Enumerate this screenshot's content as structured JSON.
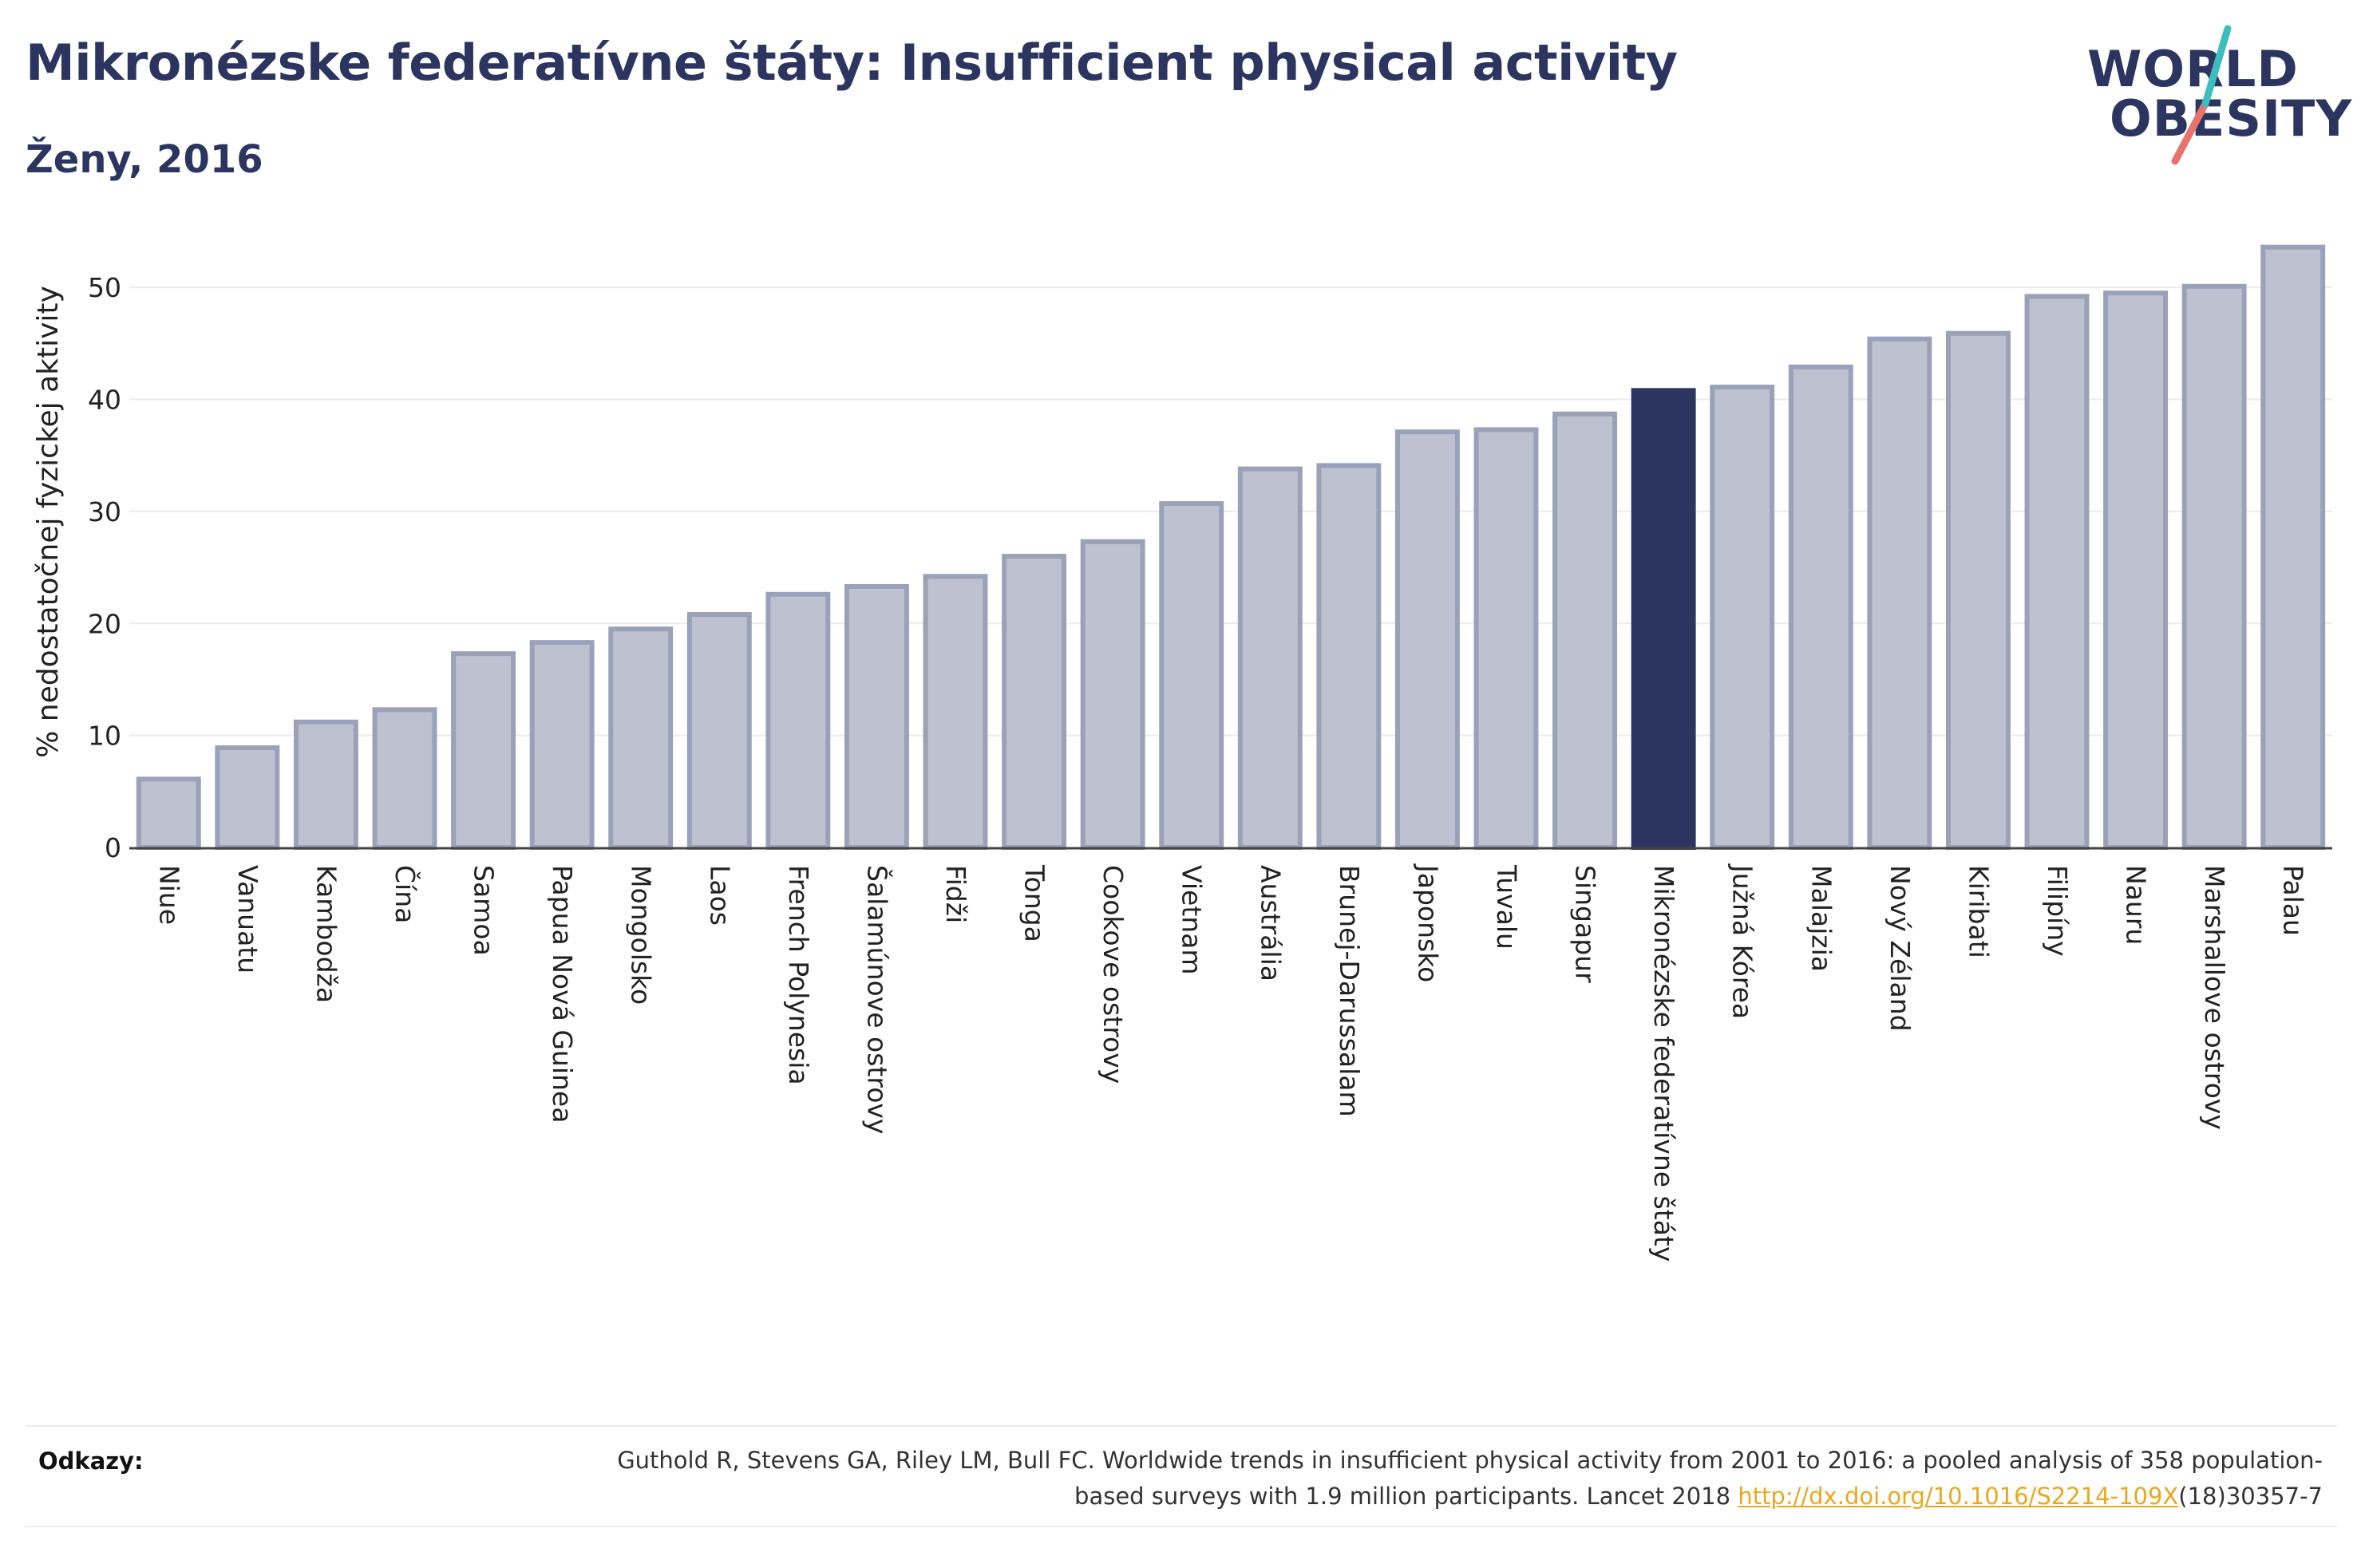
{
  "header": {
    "title": "Mikronézske federatívne štáty: Insufficient physical activity",
    "subtitle": "Ženy, 2016"
  },
  "logo": {
    "line1": "WORLD",
    "line2": "OBESITY"
  },
  "colors": {
    "highlight": "#2b3560",
    "bar_fill": "#bec2d0",
    "bar_stroke": "#9aa1b8",
    "accent_teal": "#3dbdbd",
    "accent_coral": "#e8736a",
    "link": "#e8a820"
  },
  "chart_data": {
    "type": "bar",
    "ylabel": "% nedostatočnej fyzickej aktivity",
    "ylim": [
      0,
      55
    ],
    "yticks": [
      0,
      10,
      20,
      30,
      40,
      50
    ],
    "grid": true,
    "highlight": "Mikronézske federatívne štáty",
    "categories": [
      "Niue",
      "Vanuatu",
      "Kambodža",
      "Čína",
      "Samoa",
      "Papua Nová Guinea",
      "Mongolsko",
      "Laos",
      "French Polynesia",
      "Šalamúnove ostrovy",
      "Fidži",
      "Tonga",
      "Cookove ostrovy",
      "Vietnam",
      "Austrália",
      "Brunej-Darussalam",
      "Japonsko",
      "Tuvalu",
      "Singapur",
      "Mikronézske federatívne štáty",
      "Južná Kórea",
      "Malajzia",
      "Nový Zéland",
      "Kiribati",
      "Filipíny",
      "Nauru",
      "Marshallove ostrovy",
      "Palau"
    ],
    "values": [
      6.1,
      8.9,
      11.2,
      12.3,
      17.3,
      18.3,
      19.5,
      20.8,
      22.6,
      23.3,
      24.2,
      26.0,
      27.3,
      30.7,
      33.8,
      34.1,
      37.1,
      37.3,
      38.7,
      40.8,
      41.1,
      42.9,
      45.4,
      45.9,
      49.2,
      49.5,
      50.1,
      53.6
    ]
  },
  "references": {
    "label": "Odkazy:",
    "text_before": "Guthold R, Stevens GA, Riley LM, Bull FC. Worldwide trends in insufficient physical activity from 2001 to 2016: a pooled analysis of 358 population-based surveys with 1.9 million participants. Lancet 2018 ",
    "link": "http://dx.doi.org/10.1016/S2214-109X",
    "text_after": "(18)30357-7"
  }
}
